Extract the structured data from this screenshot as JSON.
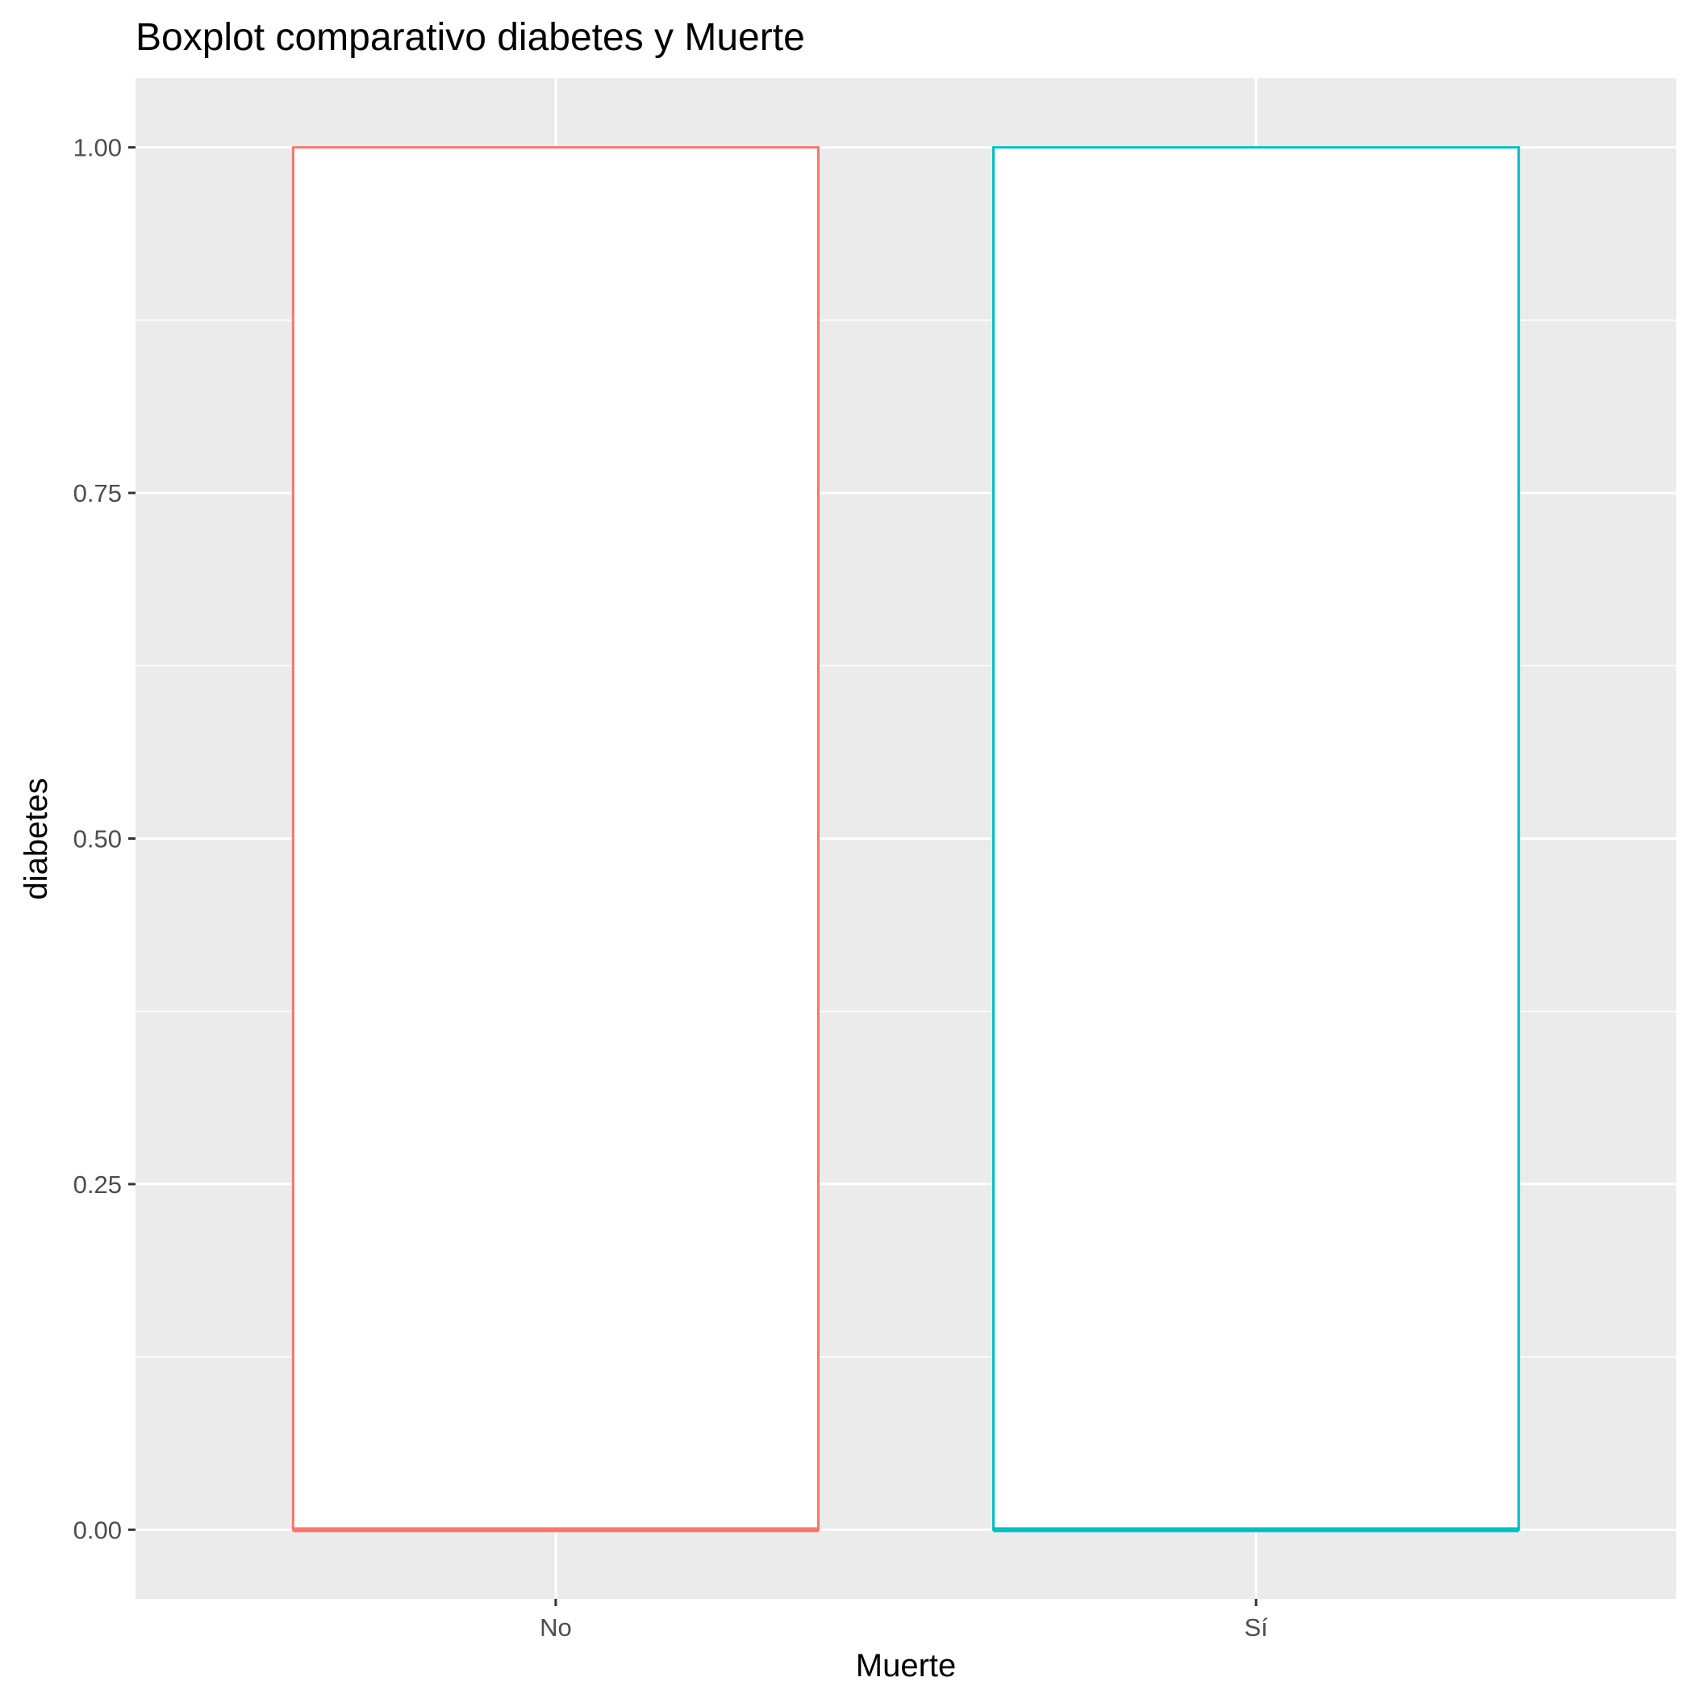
{
  "chart_data": {
    "type": "boxplot",
    "title": "Boxplot comparativo diabetes y Muerte",
    "xlabel": "Muerte",
    "ylabel": "diabetes",
    "categories": [
      "No",
      "Sí"
    ],
    "ylim": [
      -0.05,
      1.05
    ],
    "yticks": [
      0.0,
      0.25,
      0.5,
      0.75,
      1.0
    ],
    "ytick_labels": [
      "0.00",
      "0.25",
      "0.50",
      "0.75",
      "1.00"
    ],
    "series": [
      {
        "category": "No",
        "min": 0,
        "q1": 0,
        "median": 0,
        "q3": 1,
        "max": 1,
        "color": "#F8766D"
      },
      {
        "category": "Sí",
        "min": 0,
        "q1": 0,
        "median": 0,
        "q3": 1,
        "max": 1,
        "color": "#00BFC4"
      }
    ],
    "grid": true,
    "panel_background": "#EBEBEB",
    "legend": "none"
  }
}
